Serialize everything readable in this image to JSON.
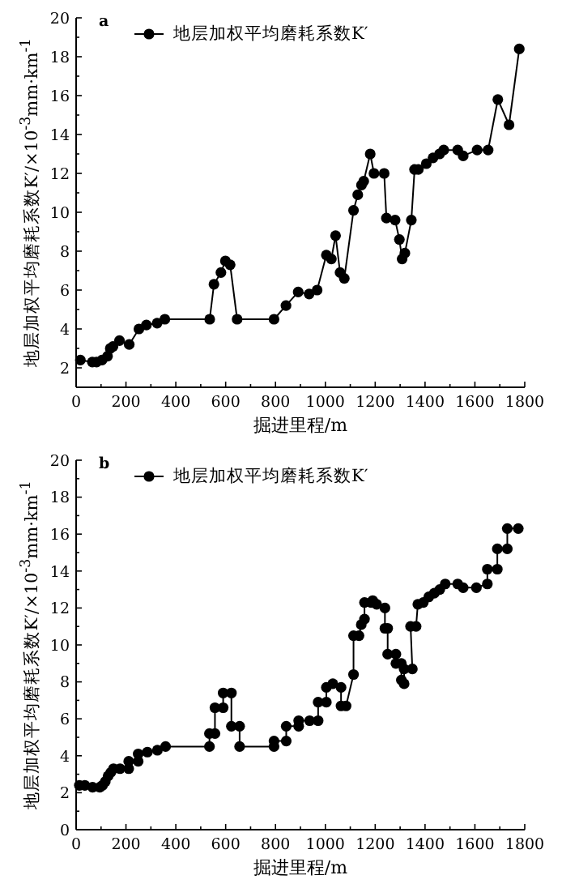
{
  "chart_data": [
    {
      "type": "line",
      "title": "a",
      "xlabel": "掘进里程/m",
      "ylabel": "地层加权平均磨耗系数K′/×10$^{-3}$mm·km$^{-1}$",
      "legend": "top left",
      "marker": "circle",
      "line_style": "solid",
      "grid": false,
      "xlim": [
        0,
        1800
      ],
      "ylim": [
        1,
        20
      ],
      "xticks": [
        0,
        {
          "value": 100,
          "label": null
        },
        200,
        {
          "value": 300,
          "label": null
        },
        400,
        {
          "value": 500,
          "label": null
        },
        600,
        {
          "value": 700,
          "label": null
        },
        800,
        {
          "value": 900,
          "label": null
        },
        1000,
        {
          "value": 1100,
          "label": null
        },
        1200,
        {
          "value": 1300,
          "label": null
        },
        1400,
        {
          "value": 1500,
          "label": null
        },
        1600,
        {
          "value": 1700,
          "label": null
        },
        1800
      ],
      "yticks": [
        2,
        {
          "value": 3,
          "label": null
        },
        4,
        {
          "value": 5,
          "label": null
        },
        6,
        {
          "value": 7,
          "label": null
        },
        8,
        {
          "value": 9,
          "label": null
        },
        10,
        {
          "value": 11,
          "label": null
        },
        12,
        {
          "value": 13,
          "label": null
        },
        14,
        {
          "value": 15,
          "label": null
        },
        16,
        {
          "value": 17,
          "label": null
        },
        18,
        {
          "value": 19,
          "label": null
        },
        20
      ],
      "series": [
        {
          "name": "地层加权平均磨耗系数K′",
          "color": "#000000",
          "x": [
            17,
            65,
            82,
            104,
            126,
            137,
            148,
            174,
            213,
            252,
            282,
            325,
            356,
            536,
            553,
            581,
            599,
            618,
            646,
            794,
            842,
            891,
            935,
            967,
            1004,
            1024,
            1041,
            1059,
            1076,
            1113,
            1130,
            1145,
            1154,
            1180,
            1195,
            1236,
            1245,
            1280,
            1297,
            1308,
            1319,
            1345,
            1358,
            1373,
            1405,
            1432,
            1458,
            1475,
            1531,
            1553,
            1609,
            1653,
            1692,
            1737,
            1778
          ],
          "values": [
            2.4,
            2.3,
            2.3,
            2.4,
            2.6,
            3.0,
            3.1,
            3.4,
            3.2,
            4.0,
            4.2,
            4.3,
            4.5,
            4.5,
            6.3,
            6.9,
            7.5,
            7.3,
            4.5,
            4.5,
            5.2,
            5.9,
            5.8,
            6.0,
            7.8,
            7.6,
            8.8,
            6.9,
            6.6,
            10.1,
            10.9,
            11.4,
            11.6,
            13.0,
            12.0,
            12.0,
            9.7,
            9.6,
            8.6,
            7.6,
            7.9,
            9.6,
            12.2,
            12.2,
            12.5,
            12.8,
            13.0,
            13.2,
            13.2,
            12.9,
            13.2,
            13.2,
            15.8,
            14.5,
            18.4
          ]
        }
      ]
    },
    {
      "type": "line",
      "title": "b",
      "xlabel": "掘进里程/m",
      "ylabel": "地层加权平均磨耗系数K′/×10$^{-3}$mm·km$^{-1}$",
      "legend": "top left",
      "marker": "circle",
      "line_style": "solid",
      "grid": false,
      "xlim": [
        0,
        1800
      ],
      "ylim": [
        0,
        20
      ],
      "xticks": [
        0,
        {
          "value": 100,
          "label": null
        },
        200,
        {
          "value": 300,
          "label": null
        },
        400,
        {
          "value": 500,
          "label": null
        },
        600,
        {
          "value": 700,
          "label": null
        },
        800,
        {
          "value": 900,
          "label": null
        },
        1000,
        {
          "value": 1100,
          "label": null
        },
        1200,
        {
          "value": 1300,
          "label": null
        },
        1400,
        {
          "value": 1500,
          "label": null
        },
        1600,
        {
          "value": 1700,
          "label": null
        },
        1800
      ],
      "yticks": [
        0,
        {
          "value": 1,
          "label": null
        },
        2,
        {
          "value": 3,
          "label": null
        },
        4,
        {
          "value": 5,
          "label": null
        },
        6,
        {
          "value": 7,
          "label": null
        },
        8,
        {
          "value": 9,
          "label": null
        },
        10,
        {
          "value": 11,
          "label": null
        },
        12,
        {
          "value": 13,
          "label": null
        },
        14,
        {
          "value": 15,
          "label": null
        },
        16,
        {
          "value": 17,
          "label": null
        },
        18,
        {
          "value": 19,
          "label": null
        },
        20
      ],
      "series": [
        {
          "name": "地层加权平均磨耗系数K′",
          "color": "#000000",
          "x": [
            13,
            35,
            66,
            95,
            106,
            117,
            128,
            139,
            150,
            176,
            211,
            211,
            249,
            249,
            286,
            326,
            359,
            535,
            535,
            557,
            557,
            590,
            590,
            623,
            623,
            656,
            656,
            794,
            794,
            843,
            843,
            893,
            893,
            937,
            971,
            971,
            1004,
            1004,
            1030,
            1063,
            1063,
            1083,
            1113,
            1113,
            1135,
            1144,
            1157,
            1157,
            1183,
            1190,
            1206,
            1239,
            1239,
            1250,
            1250,
            1283,
            1283,
            1305,
            1305,
            1316,
            1316,
            1349,
            1342,
            1364,
            1371,
            1393,
            1415,
            1437,
            1459,
            1481,
            1531,
            1553,
            1606,
            1650,
            1650,
            1690,
            1690,
            1730,
            1730,
            1774
          ],
          "values": [
            2.4,
            2.4,
            2.3,
            2.3,
            2.4,
            2.6,
            2.9,
            3.1,
            3.3,
            3.3,
            3.3,
            3.7,
            3.7,
            4.1,
            4.2,
            4.3,
            4.5,
            4.5,
            5.2,
            5.2,
            6.6,
            6.6,
            7.4,
            7.4,
            5.6,
            5.6,
            4.5,
            4.5,
            4.8,
            4.8,
            5.6,
            5.6,
            5.9,
            5.9,
            5.9,
            6.9,
            6.9,
            7.7,
            7.9,
            7.7,
            6.7,
            6.7,
            8.4,
            10.5,
            10.5,
            11.1,
            11.4,
            12.3,
            12.3,
            12.4,
            12.2,
            12.0,
            10.9,
            10.9,
            9.5,
            9.5,
            9.0,
            9.0,
            8.1,
            7.9,
            8.7,
            8.7,
            11.0,
            11.0,
            12.2,
            12.3,
            12.6,
            12.8,
            13.0,
            13.3,
            13.3,
            13.1,
            13.1,
            13.3,
            14.1,
            14.1,
            15.2,
            15.2,
            16.3,
            16.3
          ]
        }
      ]
    }
  ]
}
